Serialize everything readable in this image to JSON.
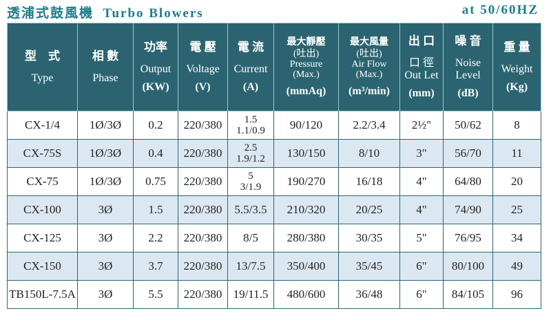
{
  "header": {
    "title_zh": "透浦式鼓風機",
    "title_en": "Turbo Blowers",
    "frequency": "at 50/60HZ"
  },
  "table": {
    "columns": [
      [
        "型　式",
        "Type"
      ],
      [
        "相 數",
        "Phase"
      ],
      [
        "功率",
        "Output",
        "(KW)"
      ],
      [
        "電 壓",
        "Voltage",
        "(V)"
      ],
      [
        "電 流",
        "Current",
        "(A)"
      ],
      [
        "最大靜壓",
        "(吐出)",
        "Pressure",
        "(Max.)",
        "(mmAq)"
      ],
      [
        "最大風量",
        "(吐出)",
        "Air Flow",
        "(Max.)",
        "(m³/min)"
      ],
      [
        "出 口",
        "口 徑",
        "Out Let",
        "(mm)"
      ],
      [
        "噪 音",
        "Noise Level",
        "(dB)"
      ],
      [
        "重 量",
        "Weight",
        "(Kg)"
      ]
    ],
    "rows": [
      [
        "CX-1/4",
        "1Ø/3Ø",
        "0.2",
        "220/380",
        [
          "1.5",
          "1.1/0.9"
        ],
        "90/120",
        "2.2/3.4",
        "2½\"",
        "50/62",
        "8"
      ],
      [
        "CX-75S",
        "1Ø/3Ø",
        "0.4",
        "220/380",
        [
          "2.5",
          "1.9/1.2"
        ],
        "130/150",
        "8/10",
        "3\"",
        "56/70",
        "11"
      ],
      [
        "CX-75",
        "1Ø/3Ø",
        "0.75",
        "220/380",
        [
          "5",
          "3/1.9"
        ],
        "190/270",
        "16/18",
        "4\"",
        "64/80",
        "20"
      ],
      [
        "CX-100",
        "3Ø",
        "1.5",
        "220/380",
        "5.5/3.5",
        "210/320",
        "20/25",
        "4\"",
        "74/90",
        "25"
      ],
      [
        "CX-125",
        "3Ø",
        "2.2",
        "220/380",
        "8/5",
        "280/380",
        "30/35",
        "5\"",
        "76/95",
        "34"
      ],
      [
        "CX-150",
        "3Ø",
        "3.7",
        "220/380",
        "13/7.5",
        "350/400",
        "35/45",
        "6\"",
        "80/100",
        "49"
      ],
      [
        "TB150L-7.5A",
        "3Ø",
        "5.5",
        "220/380",
        "19/11.5",
        "480/600",
        "36/48",
        "6\"",
        "84/105",
        "96"
      ]
    ]
  }
}
